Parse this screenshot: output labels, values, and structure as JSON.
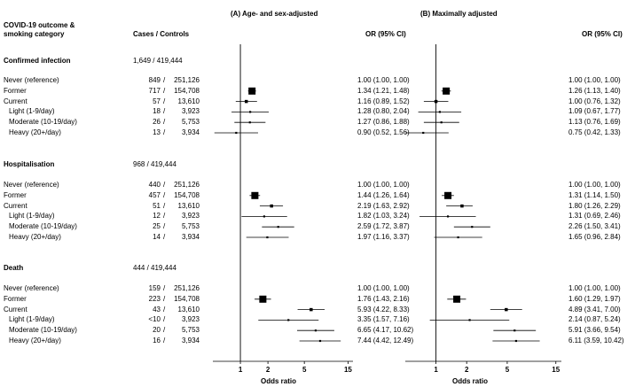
{
  "header": {
    "outcome_col": "COVID-19 outcome &",
    "outcome_col_line2": "smoking category",
    "cases_controls_col": "Cases / Controls",
    "panel_a_title": "(A) Age- and sex-adjusted",
    "panel_b_title": "(B) Maximally adjusted",
    "or_col": "OR (95% CI)",
    "xlabel": "Odds ratio"
  },
  "chart_data": {
    "type": "forest",
    "xscale": "log",
    "reference_line": 1,
    "xticks": [
      1,
      2,
      5,
      15
    ],
    "xtick_labels": [
      "1",
      "2",
      "5",
      "15"
    ],
    "xlim": [
      0.5,
      17
    ],
    "panels": [
      "(A) Age- and sex-adjusted",
      "(B) Maximally adjusted"
    ],
    "groups": [
      {
        "title": "Confirmed infection",
        "cases_controls": "1,649 / 419,444",
        "rows": [
          {
            "label": "Never (reference)",
            "cases": "849",
            "controls": "251,126",
            "indent": false,
            "a": {
              "or": 1.0,
              "lo": 1.0,
              "hi": 1.0,
              "text": "1.00 (1.00, 1.00)"
            },
            "b": {
              "or": 1.0,
              "lo": 1.0,
              "hi": 1.0,
              "text": "1.00 (1.00, 1.00)"
            }
          },
          {
            "label": "Former",
            "cases": "717",
            "controls": "154,708",
            "indent": false,
            "a": {
              "or": 1.34,
              "lo": 1.21,
              "hi": 1.48,
              "text": "1.34 (1.21, 1.48)"
            },
            "b": {
              "or": 1.26,
              "lo": 1.13,
              "hi": 1.4,
              "text": "1.26 (1.13, 1.40)"
            }
          },
          {
            "label": "Current",
            "cases": "57",
            "controls": "13,610",
            "indent": false,
            "a": {
              "or": 1.16,
              "lo": 0.89,
              "hi": 1.52,
              "text": "1.16 (0.89, 1.52)"
            },
            "b": {
              "or": 1.0,
              "lo": 0.76,
              "hi": 1.32,
              "text": "1.00 (0.76, 1.32)"
            }
          },
          {
            "label": "Light (1-9/day)",
            "cases": "18",
            "controls": "3,923",
            "indent": true,
            "a": {
              "or": 1.28,
              "lo": 0.8,
              "hi": 2.04,
              "text": "1.28 (0.80, 2.04)"
            },
            "b": {
              "or": 1.09,
              "lo": 0.67,
              "hi": 1.77,
              "text": "1.09 (0.67, 1.77)"
            }
          },
          {
            "label": "Moderate (10-19/day)",
            "cases": "26",
            "controls": "5,753",
            "indent": true,
            "a": {
              "or": 1.27,
              "lo": 0.86,
              "hi": 1.88,
              "text": "1.27 (0.86, 1.88)"
            },
            "b": {
              "or": 1.13,
              "lo": 0.76,
              "hi": 1.69,
              "text": "1.13 (0.76, 1.69)"
            }
          },
          {
            "label": "Heavy (20+/day)",
            "cases": "13",
            "controls": "3,934",
            "indent": true,
            "a": {
              "or": 0.9,
              "lo": 0.52,
              "hi": 1.56,
              "text": "0.90 (0.52, 1.56)"
            },
            "b": {
              "or": 0.75,
              "lo": 0.42,
              "hi": 1.33,
              "text": "0.75 (0.42, 1.33)"
            }
          }
        ]
      },
      {
        "title": "Hospitalisation",
        "cases_controls": "968 / 419,444",
        "rows": [
          {
            "label": "Never (reference)",
            "cases": "440",
            "controls": "251,126",
            "indent": false,
            "a": {
              "or": 1.0,
              "lo": 1.0,
              "hi": 1.0,
              "text": "1.00 (1.00, 1.00)"
            },
            "b": {
              "or": 1.0,
              "lo": 1.0,
              "hi": 1.0,
              "text": "1.00 (1.00, 1.00)"
            }
          },
          {
            "label": "Former",
            "cases": "457",
            "controls": "154,708",
            "indent": false,
            "a": {
              "or": 1.44,
              "lo": 1.26,
              "hi": 1.64,
              "text": "1.44 (1.26, 1.64)"
            },
            "b": {
              "or": 1.31,
              "lo": 1.14,
              "hi": 1.5,
              "text": "1.31 (1.14, 1.50)"
            }
          },
          {
            "label": "Current",
            "cases": "51",
            "controls": "13,610",
            "indent": false,
            "a": {
              "or": 2.19,
              "lo": 1.63,
              "hi": 2.92,
              "text": "2.19 (1.63, 2.92)"
            },
            "b": {
              "or": 1.8,
              "lo": 1.26,
              "hi": 2.29,
              "text": "1.80 (1.26, 2.29)"
            }
          },
          {
            "label": "Light (1-9/day)",
            "cases": "12",
            "controls": "3,923",
            "indent": true,
            "a": {
              "or": 1.82,
              "lo": 1.03,
              "hi": 3.24,
              "text": "1.82 (1.03, 3.24)"
            },
            "b": {
              "or": 1.31,
              "lo": 0.69,
              "hi": 2.46,
              "text": "1.31 (0.69, 2.46)"
            }
          },
          {
            "label": "Moderate (10-19/day)",
            "cases": "25",
            "controls": "5,753",
            "indent": true,
            "a": {
              "or": 2.59,
              "lo": 1.72,
              "hi": 3.87,
              "text": "2.59 (1.72, 3.87)"
            },
            "b": {
              "or": 2.26,
              "lo": 1.5,
              "hi": 3.41,
              "text": "2.26 (1.50, 3.41)"
            }
          },
          {
            "label": "Heavy (20+/day)",
            "cases": "14",
            "controls": "3,934",
            "indent": true,
            "a": {
              "or": 1.97,
              "lo": 1.16,
              "hi": 3.37,
              "text": "1.97 (1.16, 3.37)"
            },
            "b": {
              "or": 1.65,
              "lo": 0.96,
              "hi": 2.84,
              "text": "1.65 (0.96, 2.84)"
            }
          }
        ]
      },
      {
        "title": "Death",
        "cases_controls": "444 / 419,444",
        "rows": [
          {
            "label": "Never (reference)",
            "cases": "159",
            "controls": "251,126",
            "indent": false,
            "a": {
              "or": 1.0,
              "lo": 1.0,
              "hi": 1.0,
              "text": "1.00 (1.00, 1.00)"
            },
            "b": {
              "or": 1.0,
              "lo": 1.0,
              "hi": 1.0,
              "text": "1.00 (1.00, 1.00)"
            }
          },
          {
            "label": "Former",
            "cases": "223",
            "controls": "154,708",
            "indent": false,
            "a": {
              "or": 1.76,
              "lo": 1.43,
              "hi": 2.16,
              "text": "1.76 (1.43, 2.16)"
            },
            "b": {
              "or": 1.6,
              "lo": 1.29,
              "hi": 1.97,
              "text": "1.60 (1.29, 1.97)"
            }
          },
          {
            "label": "Current",
            "cases": "43",
            "controls": "13,610",
            "indent": false,
            "a": {
              "or": 5.93,
              "lo": 4.22,
              "hi": 8.33,
              "text": "5.93 (4.22, 8.33)"
            },
            "b": {
              "or": 4.89,
              "lo": 3.41,
              "hi": 7.0,
              "text": "4.89 (3.41, 7.00)"
            }
          },
          {
            "label": "Light (1-9/day)",
            "cases": "<10",
            "controls": "3,923",
            "indent": true,
            "a": {
              "or": 3.35,
              "lo": 1.57,
              "hi": 7.16,
              "text": "3.35 (1.57, 7.16)"
            },
            "b": {
              "or": 2.14,
              "lo": 0.87,
              "hi": 5.24,
              "text": "2.14 (0.87, 5.24)"
            }
          },
          {
            "label": "Moderate (10-19/day)",
            "cases": "20",
            "controls": "5,753",
            "indent": true,
            "a": {
              "or": 6.65,
              "lo": 4.17,
              "hi": 10.62,
              "text": "6.65 (4.17, 10.62)"
            },
            "b": {
              "or": 5.91,
              "lo": 3.66,
              "hi": 9.54,
              "text": "5.91 (3.66, 9.54)"
            }
          },
          {
            "label": "Heavy (20+/day)",
            "cases": "16",
            "controls": "3,934",
            "indent": true,
            "a": {
              "or": 7.44,
              "lo": 4.42,
              "hi": 12.49,
              "text": "7.44 (4.42, 12.49)"
            },
            "b": {
              "or": 6.11,
              "lo": 3.59,
              "hi": 10.42,
              "text": "6.11 (3.59, 10.42)"
            }
          }
        ]
      }
    ]
  }
}
